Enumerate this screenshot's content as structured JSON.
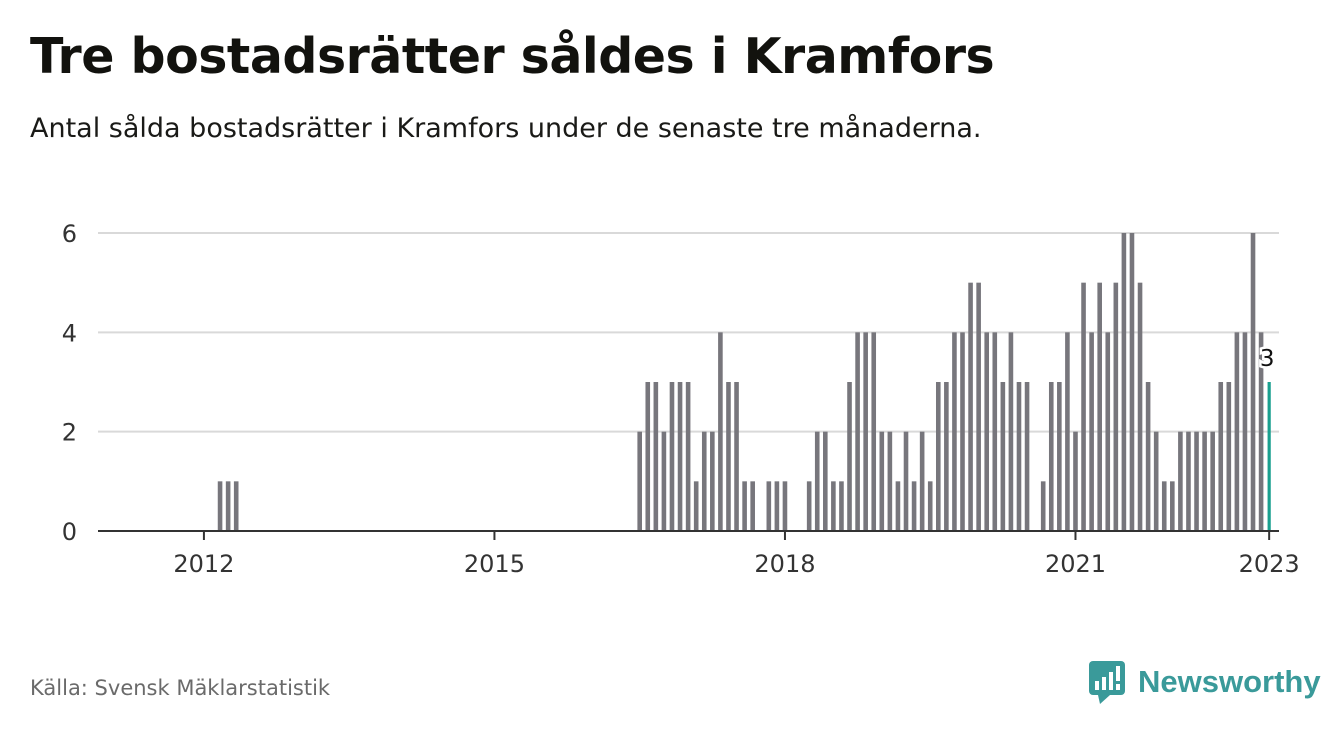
{
  "title": "Tre bostadsrätter såldes i Kramfors",
  "subtitle": "Antal sålda bostadsrätter i Kramfors under de senaste tre månaderna.",
  "source": "Källa: Svensk Mäklarstatistik",
  "brand": {
    "name": "Newsworthy",
    "color": "#3a9a9a"
  },
  "colors": {
    "bar": "#77767c",
    "highlight": "#1aa08f",
    "grid": "#d9d9d9",
    "axis": "#333333"
  },
  "chart_data": {
    "type": "bar",
    "x_unit": "month (year labels)",
    "x_ticks": [
      "2012",
      "2015",
      "2018",
      "2021",
      "2023"
    ],
    "y_ticks": [
      "0",
      "2",
      "4",
      "6"
    ],
    "ylim": [
      0,
      6
    ],
    "grid": true,
    "start": "2011-07",
    "values": [
      0,
      0,
      0,
      0,
      0,
      0,
      0,
      0,
      1,
      1,
      1,
      0,
      0,
      0,
      0,
      0,
      0,
      0,
      0,
      0,
      0,
      0,
      0,
      0,
      0,
      0,
      0,
      0,
      0,
      0,
      0,
      0,
      0,
      0,
      0,
      0,
      0,
      0,
      0,
      0,
      0,
      0,
      0,
      0,
      0,
      0,
      0,
      0,
      0,
      0,
      0,
      0,
      0,
      0,
      0,
      0,
      0,
      0,
      0,
      0,
      2,
      3,
      3,
      2,
      3,
      3,
      3,
      1,
      2,
      2,
      4,
      3,
      3,
      1,
      1,
      0,
      1,
      1,
      1,
      0,
      0,
      1,
      2,
      2,
      1,
      1,
      3,
      4,
      4,
      4,
      2,
      2,
      1,
      2,
      1,
      2,
      1,
      3,
      3,
      4,
      4,
      5,
      5,
      4,
      4,
      3,
      4,
      3,
      3,
      0,
      1,
      3,
      3,
      4,
      2,
      5,
      4,
      5,
      4,
      5,
      6,
      6,
      5,
      3,
      2,
      1,
      1,
      2,
      2,
      2,
      2,
      2,
      3,
      3,
      4,
      4,
      6,
      4,
      3
    ],
    "highlight_label": "3"
  }
}
